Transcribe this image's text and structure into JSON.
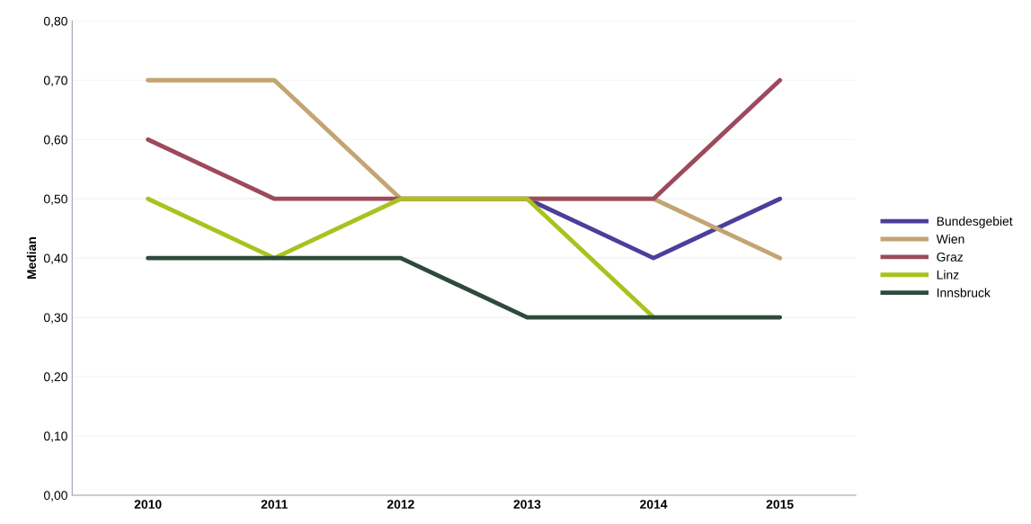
{
  "chart_data": {
    "type": "line",
    "ylabel": "Median",
    "categories": [
      "2010",
      "2011",
      "2012",
      "2013",
      "2014",
      "2015"
    ],
    "series": [
      {
        "name": "Bundesgebiet",
        "color": "#4b3f9a",
        "values": [
          null,
          null,
          null,
          0.5,
          0.4,
          0.5
        ]
      },
      {
        "name": "Wien",
        "color": "#c3a473",
        "values": [
          0.7,
          0.7,
          0.5,
          0.5,
          0.5,
          0.4
        ]
      },
      {
        "name": "Graz",
        "color": "#9c4a5c",
        "values": [
          0.6,
          0.5,
          0.5,
          0.5,
          0.5,
          0.7
        ]
      },
      {
        "name": "Linz",
        "color": "#a9c21e",
        "values": [
          0.5,
          0.4,
          0.5,
          0.5,
          0.3,
          null
        ]
      },
      {
        "name": "Innsbruck",
        "color": "#2e4a3b",
        "values": [
          0.4,
          0.4,
          0.4,
          0.3,
          0.3,
          0.3
        ]
      }
    ],
    "ylim": [
      0,
      0.8
    ],
    "yticks": [
      {
        "value": 0,
        "label": "0,00"
      },
      {
        "value": 0.1,
        "label": "0,10"
      },
      {
        "value": 0.2,
        "label": "0,20"
      },
      {
        "value": 0.3,
        "label": "0,30"
      },
      {
        "value": 0.4,
        "label": "0,40"
      },
      {
        "value": 0.5,
        "label": "0,50"
      },
      {
        "value": 0.6,
        "label": "0,60"
      },
      {
        "value": 0.7,
        "label": "0,70"
      },
      {
        "value": 0.8,
        "label": "0,80"
      }
    ],
    "grid": "y",
    "legend": "right",
    "marker": "none",
    "line_style": "solid"
  }
}
